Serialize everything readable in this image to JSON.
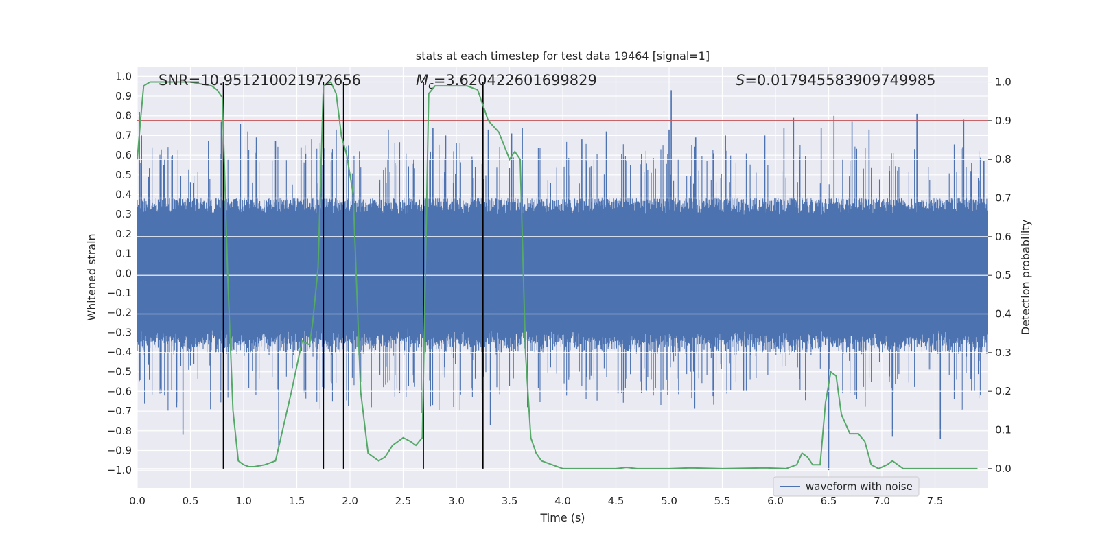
{
  "chart_data": {
    "type": "line",
    "title": "stats at each timestep for test data 19464 [signal=1]",
    "xlabel": "Time (s)",
    "ylabel_left": "Whitened strain",
    "ylabel_right": "Detection probability",
    "xlim": [
      0.0,
      8.0
    ],
    "ylim_left": [
      -1.09,
      1.05
    ],
    "ylim_right": [
      -0.05,
      1.04
    ],
    "x_ticks": [
      "0.0",
      "0.5",
      "1.0",
      "1.5",
      "2.0",
      "2.5",
      "3.0",
      "3.5",
      "4.0",
      "4.5",
      "5.0",
      "5.5",
      "6.0",
      "6.5",
      "7.0",
      "7.5"
    ],
    "y_left_ticks": [
      "1.0",
      "0.9",
      "0.8",
      "0.7",
      "0.6",
      "0.5",
      "0.4",
      "0.3",
      "0.2",
      "0.1",
      "0.0",
      "−0.1",
      "−0.2",
      "−0.3",
      "−0.4",
      "−0.5",
      "−0.6",
      "−0.7",
      "−0.8",
      "−0.9",
      "−1.0"
    ],
    "y_right_ticks": [
      "1.0",
      "0.9",
      "0.8",
      "0.7",
      "0.6",
      "0.5",
      "0.4",
      "0.3",
      "0.2",
      "0.1",
      "0.0"
    ],
    "grid": true,
    "annotations": [
      {
        "label": "SNR",
        "eq": "=10.951210021972656"
      },
      {
        "label": "Mc",
        "eq": "=3.620422601699829"
      },
      {
        "label": "S",
        "eq": "=0.017945583909749985"
      }
    ],
    "threshold": {
      "value": 0.9,
      "axis": "right",
      "color": "#c44e52"
    },
    "vertical_lines_x": [
      0.81,
      1.75,
      1.94,
      2.69,
      3.25
    ],
    "series": [
      {
        "name": "waveform with noise",
        "color": "#4c72b0",
        "description_values": {
          "noise_envelope": 0.35,
          "max": 0.93,
          "min": -1.0
        },
        "spikes": [
          [
            0.02,
            0.82
          ],
          [
            0.04,
            0.7
          ],
          [
            0.07,
            -0.66
          ],
          [
            0.25,
            0.55
          ],
          [
            0.33,
            0.6
          ],
          [
            0.37,
            -0.68
          ],
          [
            0.43,
            -0.82
          ],
          [
            0.67,
            0.67
          ],
          [
            0.69,
            -0.69
          ],
          [
            0.79,
            0.77
          ],
          [
            0.97,
            0.76
          ],
          [
            1.04,
            0.72
          ],
          [
            1.12,
            0.69
          ],
          [
            1.3,
            0.67
          ],
          [
            1.33,
            -0.89
          ],
          [
            1.54,
            0.64
          ],
          [
            1.64,
            0.68
          ],
          [
            1.73,
            0.59
          ],
          [
            1.87,
            0.73
          ],
          [
            2.09,
            0.62
          ],
          [
            2.2,
            -0.68
          ],
          [
            2.36,
            0.73
          ],
          [
            2.6,
            0.58
          ],
          [
            2.67,
            -0.71
          ],
          [
            2.78,
            0.74
          ],
          [
            2.9,
            0.7
          ],
          [
            3.0,
            0.66
          ],
          [
            3.3,
            0.73
          ],
          [
            3.32,
            -0.77
          ],
          [
            3.52,
            0.71
          ],
          [
            3.62,
            0.74
          ],
          [
            3.67,
            -0.68
          ],
          [
            4.18,
            0.68
          ],
          [
            4.41,
            0.72
          ],
          [
            4.52,
            -0.61
          ],
          [
            5.0,
            0.73
          ],
          [
            5.02,
            0.93
          ],
          [
            5.25,
            0.69
          ],
          [
            5.53,
            0.7
          ],
          [
            5.7,
            -0.6
          ],
          [
            5.9,
            0.7
          ],
          [
            6.08,
            0.74
          ],
          [
            6.17,
            0.79
          ],
          [
            6.43,
            0.74
          ],
          [
            6.5,
            -1.0
          ],
          [
            6.55,
            0.8
          ],
          [
            6.72,
            0.77
          ],
          [
            6.88,
            0.73
          ],
          [
            7.1,
            -0.83
          ],
          [
            7.33,
            0.81
          ],
          [
            7.55,
            -0.84
          ],
          [
            7.77,
            0.78
          ],
          [
            7.87,
            -0.6
          ],
          [
            7.96,
            0.57
          ]
        ]
      },
      {
        "name": "detection probability",
        "color": "#55a868",
        "axis": "right",
        "x": [
          0.0,
          0.03,
          0.06,
          0.12,
          0.3,
          0.5,
          0.7,
          0.75,
          0.8,
          0.85,
          0.9,
          0.95,
          1.0,
          1.05,
          1.1,
          1.2,
          1.3,
          1.45,
          1.55,
          1.62,
          1.65,
          1.7,
          1.75,
          1.82,
          1.87,
          1.92,
          1.97,
          2.03,
          2.1,
          2.17,
          2.27,
          2.33,
          2.4,
          2.5,
          2.57,
          2.62,
          2.68,
          2.74,
          2.8,
          2.87,
          3.0,
          3.1,
          3.2,
          3.3,
          3.4,
          3.5,
          3.55,
          3.6,
          3.65,
          3.7,
          3.75,
          3.8,
          3.9,
          4.0,
          4.5,
          4.6,
          4.7,
          5.0,
          5.2,
          5.5,
          5.9,
          6.1,
          6.2,
          6.25,
          6.3,
          6.35,
          6.42,
          6.47,
          6.52,
          6.57,
          6.62,
          6.7,
          6.78,
          6.84,
          6.9,
          6.97,
          7.05,
          7.1,
          7.2,
          7.5,
          7.9
        ],
        "y": [
          0.8,
          0.9,
          0.99,
          1.0,
          1.0,
          1.0,
          0.99,
          0.98,
          0.96,
          0.5,
          0.15,
          0.02,
          0.01,
          0.005,
          0.005,
          0.01,
          0.02,
          0.2,
          0.33,
          0.32,
          0.38,
          0.52,
          0.99,
          1.0,
          0.97,
          0.86,
          0.81,
          0.71,
          0.2,
          0.04,
          0.02,
          0.03,
          0.06,
          0.08,
          0.07,
          0.06,
          0.08,
          0.97,
          0.99,
          0.99,
          0.99,
          0.99,
          0.98,
          0.9,
          0.87,
          0.8,
          0.82,
          0.8,
          0.3,
          0.08,
          0.04,
          0.02,
          0.01,
          0.0,
          0.0,
          0.003,
          0.0,
          0.0,
          0.002,
          0.0,
          0.002,
          0.0,
          0.01,
          0.04,
          0.03,
          0.01,
          0.01,
          0.17,
          0.25,
          0.24,
          0.14,
          0.09,
          0.09,
          0.07,
          0.01,
          0.0,
          0.01,
          0.02,
          0.0,
          0.0,
          0.0
        ]
      }
    ],
    "legend": {
      "position": "lower-right",
      "entries": [
        "waveform with noise"
      ]
    }
  }
}
